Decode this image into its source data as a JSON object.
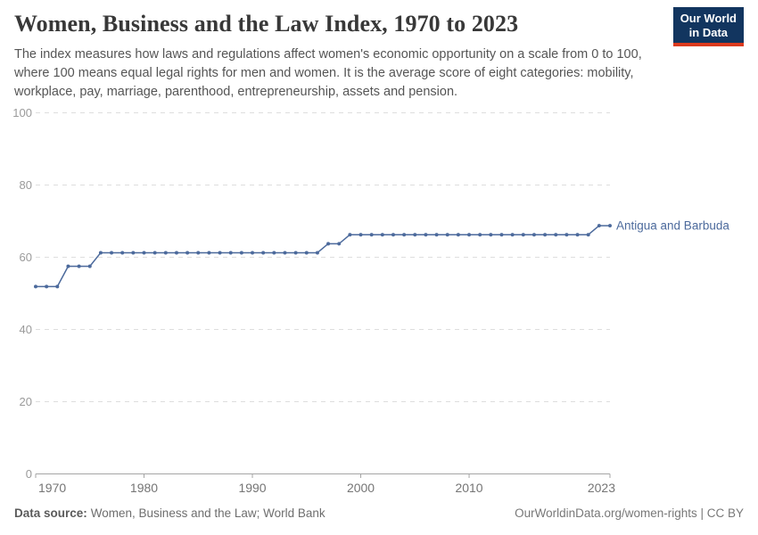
{
  "header": {
    "title": "Women, Business and the Law Index, 1970 to 2023",
    "subtitle": "The index measures how laws and regulations affect women's economic opportunity on a scale from 0 to 100, where 100 means equal legal rights for men and women. It is the average score of eight categories: mobility, workplace, pay, marriage, parenthood, entrepreneurship, assets and pension."
  },
  "logo": {
    "line1": "Our World",
    "line2": "in Data",
    "bg_color": "#12355F",
    "accent_color": "#DC3A1D"
  },
  "chart_data": {
    "type": "line",
    "title": "Women, Business and the Law Index, 1970 to 2023",
    "xlabel": "",
    "ylabel": "",
    "xlim": [
      1970,
      2023
    ],
    "ylim": [
      0,
      100
    ],
    "xticks": [
      1970,
      1980,
      1990,
      2000,
      2010,
      2023
    ],
    "yticks": [
      0,
      20,
      40,
      60,
      80,
      100
    ],
    "grid": "horizontal-dashed",
    "legend_position": "end-of-line-label",
    "colors": {
      "gridline": "#dedede",
      "axis_line": "#a5a5a5",
      "y_tick_label": "#9a9a9a",
      "x_tick_label": "#757575"
    },
    "series": [
      {
        "name": "Antigua and Barbuda",
        "color": "#4C6A9C",
        "x": [
          1970,
          1971,
          1972,
          1973,
          1974,
          1975,
          1976,
          1977,
          1978,
          1979,
          1980,
          1981,
          1982,
          1983,
          1984,
          1985,
          1986,
          1987,
          1988,
          1989,
          1990,
          1991,
          1992,
          1993,
          1994,
          1995,
          1996,
          1997,
          1998,
          1999,
          2000,
          2001,
          2002,
          2003,
          2004,
          2005,
          2006,
          2007,
          2008,
          2009,
          2010,
          2011,
          2012,
          2013,
          2014,
          2015,
          2016,
          2017,
          2018,
          2019,
          2020,
          2021,
          2022,
          2023
        ],
        "values": [
          51.875,
          51.875,
          51.875,
          57.5,
          57.5,
          57.5,
          61.25,
          61.25,
          61.25,
          61.25,
          61.25,
          61.25,
          61.25,
          61.25,
          61.25,
          61.25,
          61.25,
          61.25,
          61.25,
          61.25,
          61.25,
          61.25,
          61.25,
          61.25,
          61.25,
          61.25,
          61.25,
          63.75,
          63.75,
          66.25,
          66.25,
          66.25,
          66.25,
          66.25,
          66.25,
          66.25,
          66.25,
          66.25,
          66.25,
          66.25,
          66.25,
          66.25,
          66.25,
          66.25,
          66.25,
          66.25,
          66.25,
          66.25,
          66.25,
          66.25,
          66.25,
          66.25,
          68.75,
          68.75
        ]
      }
    ]
  },
  "footer": {
    "datasource_label": "Data source:",
    "datasource_text": "Women, Business and the Law; World Bank",
    "credit": "OurWorldinData.org/women-rights | CC BY"
  }
}
